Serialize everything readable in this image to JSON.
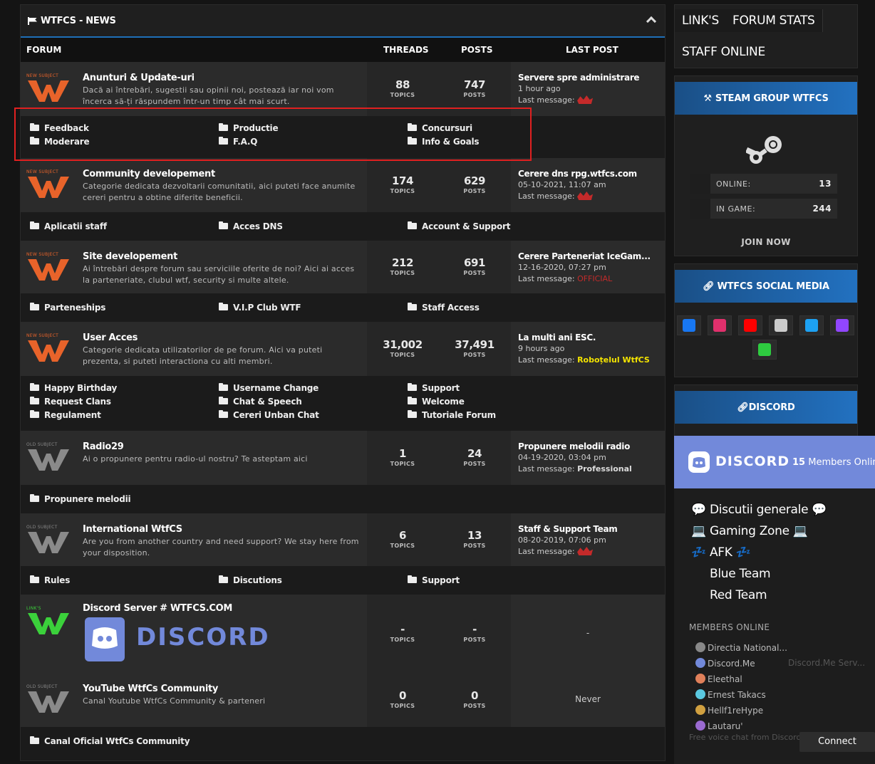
{
  "news_panel": {
    "title": "WTFCS - NEWS"
  },
  "columns": {
    "forum": "FORUM",
    "threads": "THREADS",
    "posts": "POSTS",
    "last_post": "LAST POST"
  },
  "forums": [
    {
      "badge": "NEW SUBJECT",
      "title": "Anunturi & Update-uri",
      "desc": "Dacă ai întrebări, sugestii sau opinii noi, postează iar noi vom încerca să-ți răspundem într-un timp cât mai scurt.",
      "topics": "88",
      "topics_label": "TOPICS",
      "posts": "747",
      "posts_label": "POSTS",
      "last_title": "Servere spre administrare",
      "last_time": "1 hour ago",
      "last_msg_label": "Last message:",
      "last_user": "",
      "subforums": [
        "Feedback",
        "Productie",
        "Concursuri",
        "Moderare",
        "F.A.Q",
        "Info & Goals"
      ]
    },
    {
      "badge": "NEW SUBJECT",
      "title": "Community developement",
      "desc": "Categorie dedicata dezvoltarii comunitatii, aici puteti face anumite cereri pentru a obtine diferite beneficii.",
      "topics": "174",
      "topics_label": "TOPICS",
      "posts": "629",
      "posts_label": "POSTS",
      "last_title": "Cerere dns rpg.wtfcs.com",
      "last_time": "05-10-2021, 11:07 am",
      "last_msg_label": "Last message:",
      "last_user": "",
      "subforums": [
        "Aplicatii staff",
        "Acces DNS",
        "Account & Support"
      ]
    },
    {
      "badge": "NEW SUBJECT",
      "title": "Site developement",
      "desc": "Ai întrebări despre forum sau serviciile oferite de noi? Aici ai acces la parteneriate, clubul wtf, security si multe altele.",
      "topics": "212",
      "topics_label": "TOPICS",
      "posts": "691",
      "posts_label": "POSTS",
      "last_title": "Cerere Parteneriat IceGam...",
      "last_time": "12-16-2020, 07:27 pm",
      "last_msg_label": "Last message:",
      "last_user": "OFFICIAL",
      "subforums": [
        "Parteneships",
        "V.I.P Club WTF",
        "Staff Access"
      ]
    },
    {
      "badge": "NEW SUBJECT",
      "title": "User Acces",
      "desc": "Categorie dedicata utilizatorilor de pe forum. Aici va puteti prezenta, si puteti interactiona cu alti membri.",
      "topics": "31,002",
      "topics_label": "TOPICS",
      "posts": "37,491",
      "posts_label": "POSTS",
      "last_title": "La multi ani ESC.",
      "last_time": "9 hours ago",
      "last_msg_label": "Last message:",
      "last_user": "Roboțelul WtfCS",
      "subforums": [
        "Happy Birthday",
        "Username Change",
        "Support",
        "Request Clans",
        "Chat & Speech",
        "Welcome",
        "Regulament",
        "Cereri Unban Chat",
        "Tutoriale Forum"
      ]
    },
    {
      "badge": "OLD SUBJECT",
      "title": "Radio29",
      "desc": "Ai o propunere pentru radio-ul nostru? Te asteptam aici",
      "topics": "1",
      "topics_label": "TOPICS",
      "posts": "24",
      "posts_label": "POSTS",
      "last_title": "Propunere melodii radio",
      "last_time": "04-19-2020, 03:04 pm",
      "last_msg_label": "Last message:",
      "last_user": "Professional",
      "subforums": [
        "Propunere melodii"
      ]
    },
    {
      "badge": "OLD SUBJECT",
      "title": "International WtfCS",
      "desc": "Are you from another country and need support? We stay here from your disposition.",
      "topics": "6",
      "topics_label": "TOPICS",
      "posts": "13",
      "posts_label": "POSTS",
      "last_title": "Staff & Support Team",
      "last_time": "08-20-2019, 07:06 pm",
      "last_msg_label": "Last message:",
      "last_user": "",
      "subforums": [
        "Rules",
        "Discutions",
        "Support"
      ]
    },
    {
      "badge": "LINK'S",
      "title": "Discord Server # WTFCS.COM",
      "desc": "DISCORD",
      "topics": "-",
      "topics_label": "TOPICS",
      "posts": "-",
      "posts_label": "POSTS",
      "last_title": "-"
    },
    {
      "badge": "OLD SUBJECT",
      "title": "YouTube WtfCs Community",
      "desc": "Canal Youtube WtfCs Community & parteneri",
      "topics": "0",
      "topics_label": "TOPICS",
      "posts": "0",
      "posts_label": "POSTS",
      "last_title": "Never",
      "subforums": [
        "Canal Oficial WtfCs Community"
      ]
    }
  ],
  "sidebar": {
    "tabs": [
      "LINK'S",
      "FORUM STATS",
      "STAFF ONLINE"
    ],
    "steam": {
      "title": "STEAM GROUP WTFCS",
      "online_label": "ONLINE:",
      "online": "13",
      "ingame_label": "IN GAME:",
      "ingame": "244",
      "join": "JOIN NOW"
    },
    "social": {
      "title": "WTFCS SOCIAL MEDIA",
      "icons": [
        "facebook-icon",
        "instagram-icon",
        "youtube-icon",
        "steam-icon",
        "twitter-icon",
        "twitch-icon",
        "google-plus-icon"
      ],
      "colors": [
        "#1877f2",
        "#e1306c",
        "#ff0000",
        "#cccccc",
        "#1da1f2",
        "#9146ff",
        "#2ecc40"
      ]
    },
    "discord": {
      "title": "DISCORD"
    }
  },
  "discord_widget": {
    "wordmark": "DISCORD",
    "members_count": "15",
    "members_label": "Members Online",
    "channels": [
      "💬 Discutii generale 💬",
      "💻 Gaming Zone 💻",
      "💤 AFK 💤",
      "Blue Team",
      "Red Team"
    ],
    "members_online_label": "MEMBERS ONLINE",
    "members": [
      "Directia National...",
      "Discord.Me",
      "Eleethal",
      "Ernest Takacs",
      "Hellf1reHype",
      "Lautaru'"
    ],
    "member_game": "Discord.Me Serv...",
    "free_voice": "Free voice chat from Discord",
    "connect": "Connect"
  }
}
